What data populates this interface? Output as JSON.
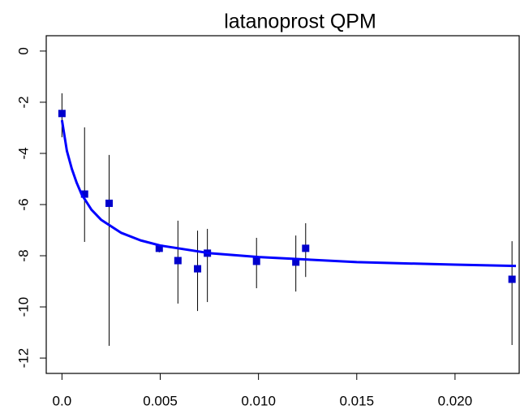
{
  "chart_data": {
    "type": "scatter",
    "title": "latanoprost QPM",
    "xlim": [
      -0.0008,
      0.0231
    ],
    "ylim": [
      -12.6,
      0.6
    ],
    "xticks": [
      {
        "value": 0,
        "label": "0.0"
      },
      0.005,
      {
        "value": 0.01,
        "label": "0.010"
      },
      0.015,
      {
        "value": 0.02,
        "label": "0.020"
      }
    ],
    "yticks": [
      0,
      -2,
      -4,
      -6,
      -8,
      -10,
      -12
    ],
    "series": [
      {
        "color": "#0000cc",
        "x": [
          0,
          0.00115,
          0.0024,
          0.00495,
          0.0059,
          0.0069,
          0.0074,
          0.0099,
          0.0119,
          0.0124,
          0.0229
        ],
        "values": [
          -2.44,
          -5.59,
          -5.95,
          -7.71,
          -8.19,
          -8.51,
          -7.9,
          -8.22,
          -8.25,
          -7.71,
          -8.92
        ],
        "lower": [
          -3.37,
          -7.46,
          -11.52,
          -7.87,
          -9.87,
          -10.16,
          -9.81,
          -9.27,
          -9.4,
          -8.83,
          -11.49
        ],
        "upper": [
          -1.65,
          -2.98,
          -4.06,
          -7.59,
          -6.63,
          -7.02,
          -6.95,
          -7.3,
          -7.21,
          -6.73,
          -7.43
        ]
      },
      {
        "type": "line",
        "color": "#0000ff",
        "x": [
          0,
          0.00025,
          0.0005,
          0.00075,
          0.001,
          0.0015,
          0.002,
          0.003,
          0.004,
          0.005,
          0.0075,
          0.01,
          0.015,
          0.02,
          0.0231
        ],
        "values": [
          -2.7,
          -3.9,
          -4.6,
          -5.15,
          -5.6,
          -6.2,
          -6.6,
          -7.1,
          -7.4,
          -7.6,
          -7.9,
          -8.05,
          -8.25,
          -8.35,
          -8.4
        ]
      }
    ]
  }
}
